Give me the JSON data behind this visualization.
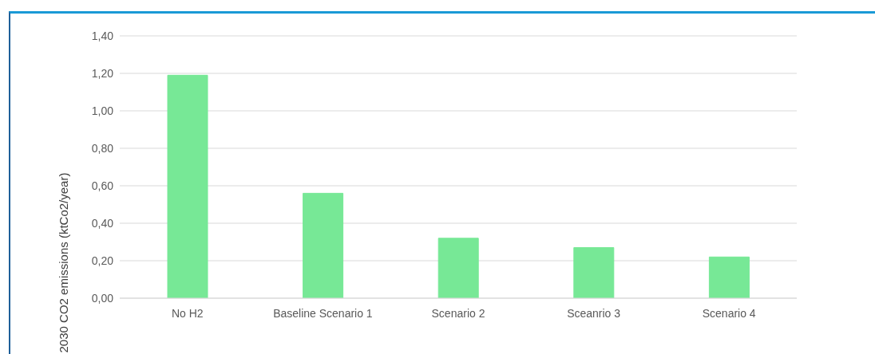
{
  "chart_data": {
    "type": "bar",
    "ylabel": "2030 CO2 emissions (ktCo2/year)",
    "categories": [
      "No H2",
      "Baseline Scenario 1",
      "Scenario 2",
      "Sceanrio 3",
      "Scenario 4"
    ],
    "values": [
      1.19,
      0.56,
      0.32,
      0.27,
      0.22
    ],
    "color": "#77e896",
    "ylim": [
      0,
      1.4
    ],
    "yticks": [
      {
        "value": 0,
        "label": "0,00"
      },
      {
        "value": 0.2,
        "label": "0,20"
      },
      {
        "value": 0.4,
        "label": "0,40"
      },
      {
        "value": 0.6,
        "label": "0,60"
      },
      {
        "value": 0.8,
        "label": "0,80"
      },
      {
        "value": 1.0,
        "label": "1,00"
      },
      {
        "value": 1.2,
        "label": "1,20"
      },
      {
        "value": 1.4,
        "label": "1,40"
      }
    ],
    "grid": "y"
  }
}
